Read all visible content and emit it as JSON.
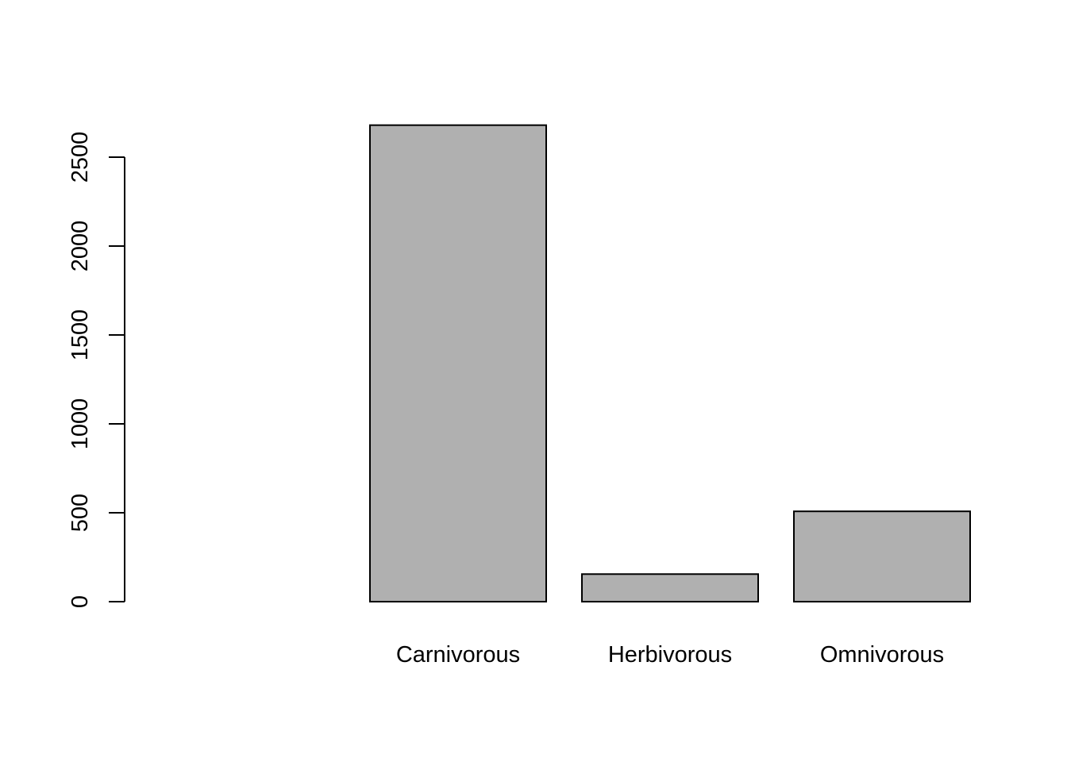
{
  "chart_data": {
    "type": "bar",
    "categories": [
      "",
      "Carnivorous",
      "Herbivorous",
      "Omnivorous"
    ],
    "values": [
      0,
      2680,
      155,
      508
    ],
    "title": "",
    "xlabel": "",
    "ylabel": "",
    "yticks": [
      0,
      500,
      1000,
      1500,
      2000,
      2500
    ],
    "ylim": [
      0,
      2680
    ],
    "grid": false,
    "legend": "none",
    "colors": {
      "bar_fill": "#b0b0b0",
      "bar_stroke": "#000000",
      "axis": "#000000",
      "background": "#ffffff"
    }
  }
}
